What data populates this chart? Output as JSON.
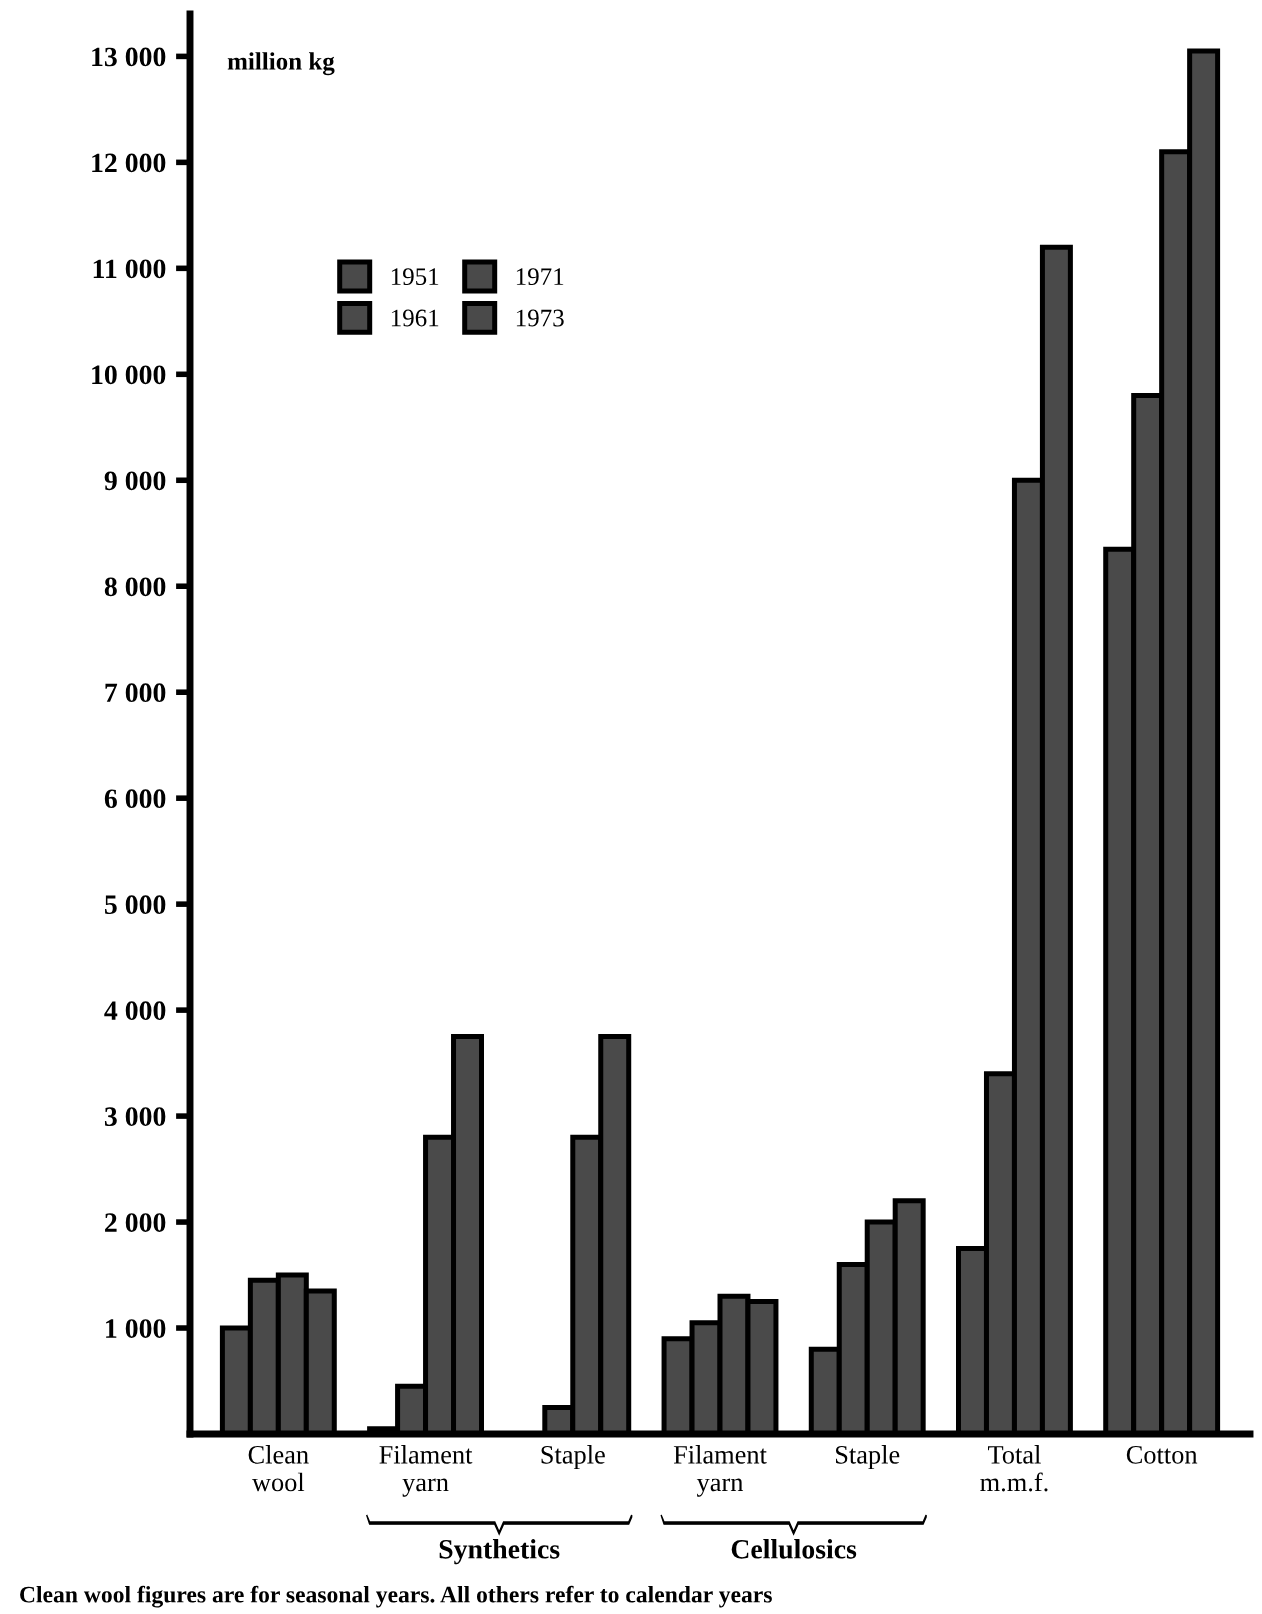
{
  "chart_data": {
    "type": "bar",
    "ylabel": "million kg",
    "categories": [
      "Clean\nwool",
      "Filament\nyarn",
      "Staple",
      "Filament\nyarn",
      "Staple",
      "Total\nm.m.f.",
      "Cotton"
    ],
    "series": [
      {
        "name": "1951",
        "color": "#4a4a4a",
        "values": [
          1000,
          50,
          null,
          900,
          800,
          1750,
          8350
        ]
      },
      {
        "name": "1961",
        "color": "#4a4a4a",
        "values": [
          1450,
          450,
          250,
          1050,
          1600,
          3400,
          9800
        ]
      },
      {
        "name": "1971",
        "color": "#4a4a4a",
        "values": [
          1500,
          2800,
          2800,
          1300,
          2000,
          9000,
          12100
        ]
      },
      {
        "name": "1973",
        "color": "#4a4a4a",
        "values": [
          1350,
          3750,
          3750,
          1250,
          2200,
          11200,
          13050
        ]
      }
    ],
    "ylim": [
      0,
      13400
    ],
    "yticks": [
      {
        "value": 1000,
        "label": "1 000"
      },
      {
        "value": 2000,
        "label": "2 000"
      },
      {
        "value": 3000,
        "label": "3 000"
      },
      {
        "value": 4000,
        "label": "4 000"
      },
      {
        "value": 5000,
        "label": "5 000"
      },
      {
        "value": 6000,
        "label": "6 000"
      },
      {
        "value": 7000,
        "label": "7 000"
      },
      {
        "value": 8000,
        "label": "8 000"
      },
      {
        "value": 9000,
        "label": "9 000"
      },
      {
        "value": 10000,
        "label": "10 000"
      },
      {
        "value": 11000,
        "label": "11 000"
      },
      {
        "value": 12000,
        "label": "12 000"
      },
      {
        "value": 13000,
        "label": "13 000"
      }
    ],
    "grid": false,
    "legend": "top left",
    "annotations": [
      "Synthetics",
      "Cellulosics",
      "Clean wool figures are for seasonal years. All others refer to calendar years"
    ]
  }
}
